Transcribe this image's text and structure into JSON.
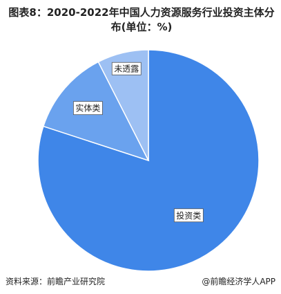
{
  "chart_data": {
    "type": "pie",
    "title": "图表8：2020-2022年中国人力资源服务行业投资主体分布(单位：%)",
    "categories": [
      "投资类",
      "实体类",
      "未透露"
    ],
    "values": [
      80,
      12.5,
      7.5
    ],
    "colors": [
      "#3f86e8",
      "#6aa2ee",
      "#9dc0f3"
    ],
    "source": "资料来源：前瞻产业研究院",
    "brand": "@前瞻经济学人APP"
  }
}
